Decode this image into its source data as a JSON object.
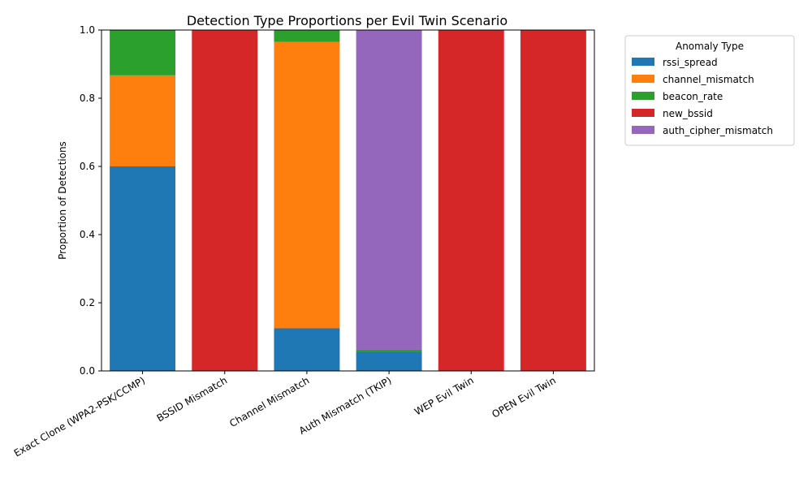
{
  "chart_data": {
    "type": "bar",
    "stacked": true,
    "title": "Detection Type Proportions per Evil Twin Scenario",
    "xlabel": "",
    "ylabel": "Proportion of Detections",
    "ylim": [
      0,
      1
    ],
    "yticks": [
      0.0,
      0.2,
      0.4,
      0.6,
      0.8,
      1.0
    ],
    "ytick_labels": [
      "0.0",
      "0.2",
      "0.4",
      "0.6",
      "0.8",
      "1.0"
    ],
    "categories": [
      "Exact Clone (WPA2-PSK/CCMP)",
      "BSSID Mismatch",
      "Channel Mismatch",
      "Auth Mismatch (TKIP)",
      "WEP Evil Twin",
      "OPEN Evil Twin"
    ],
    "legend": {
      "title": "Anomaly Type",
      "placement": "outside-right-top"
    },
    "grid": false,
    "series": [
      {
        "name": "rssi_spread",
        "color": "#1f77b4",
        "values": [
          0.6,
          0.0,
          0.125,
          0.057,
          0.0,
          0.0
        ]
      },
      {
        "name": "channel_mismatch",
        "color": "#ff7f0e",
        "values": [
          0.267,
          0.0,
          0.84,
          0.0,
          0.0,
          0.0
        ]
      },
      {
        "name": "beacon_rate",
        "color": "#2ca02c",
        "values": [
          0.133,
          0.0,
          0.035,
          0.005,
          0.0,
          0.0
        ]
      },
      {
        "name": "new_bssid",
        "color": "#d62728",
        "values": [
          0.0,
          1.0,
          0.0,
          0.0,
          1.0,
          1.0
        ]
      },
      {
        "name": "auth_cipher_mismatch",
        "color": "#9467bd",
        "values": [
          0.0,
          0.0,
          0.0,
          0.938,
          0.0,
          0.0
        ]
      }
    ]
  }
}
